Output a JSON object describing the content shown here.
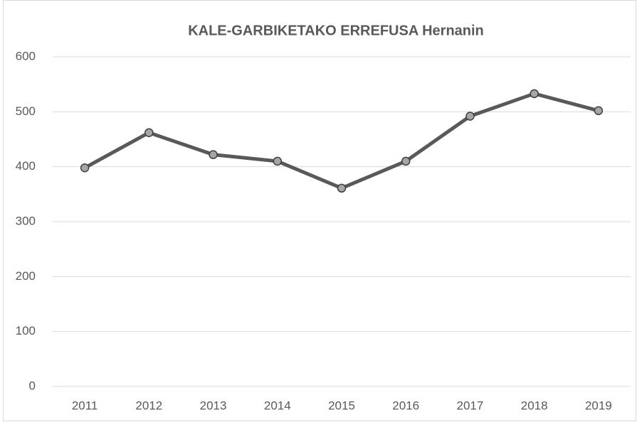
{
  "chart_data": {
    "type": "line",
    "title": "KALE-GARBIKETAKO ERREFUSA Hernanin",
    "categories": [
      "2011",
      "2012",
      "2013",
      "2014",
      "2015",
      "2016",
      "2017",
      "2018",
      "2019"
    ],
    "values": [
      398,
      462,
      422,
      410,
      361,
      410,
      492,
      533,
      502
    ],
    "color": "#595959",
    "marker_color": "#a6a6a6",
    "ylim": [
      0,
      600
    ],
    "yticks": [
      0,
      100,
      200,
      300,
      400,
      500,
      600
    ],
    "grid": true
  }
}
